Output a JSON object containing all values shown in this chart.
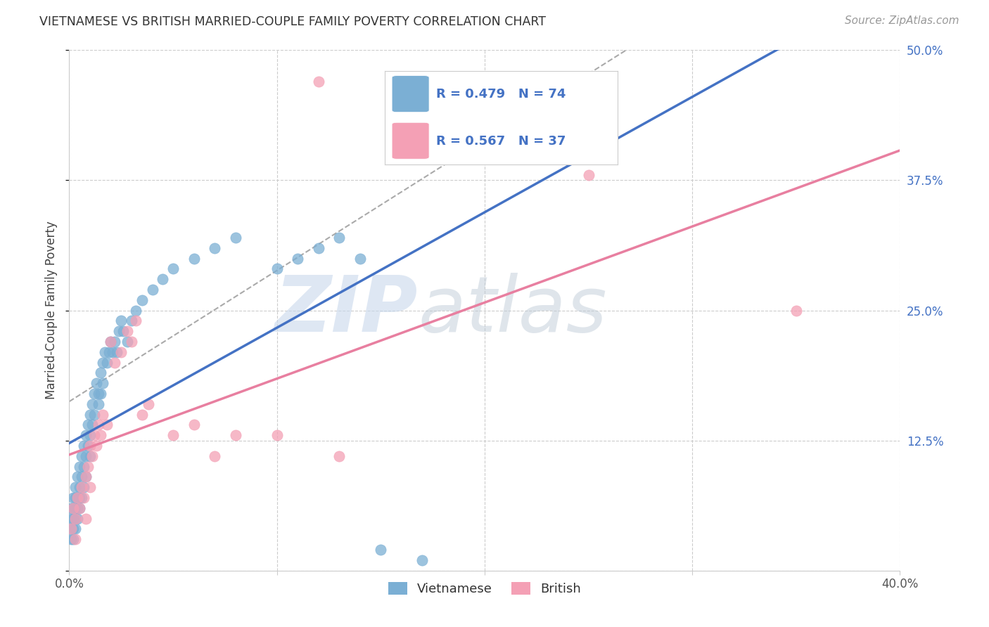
{
  "title": "VIETNAMESE VS BRITISH MARRIED-COUPLE FAMILY POVERTY CORRELATION CHART",
  "source": "Source: ZipAtlas.com",
  "ylabel": "Married-Couple Family Poverty",
  "xlim": [
    0.0,
    0.4
  ],
  "ylim": [
    0.0,
    0.5
  ],
  "xticks": [
    0.0,
    0.1,
    0.2,
    0.3,
    0.4
  ],
  "yticks": [
    0.0,
    0.125,
    0.25,
    0.375,
    0.5
  ],
  "vietnamese_color": "#7bafd4",
  "british_color": "#f4a0b5",
  "vietnamese_R": 0.479,
  "vietnamese_N": 74,
  "british_R": 0.567,
  "british_N": 37,
  "background_color": "#ffffff",
  "grid_color": "#cccccc",
  "tick_color": "#4472c4",
  "title_color": "#333333",
  "source_color": "#999999",
  "viet_line_color": "#4472c4",
  "brit_line_color": "#e87fa0",
  "dash_line_color": "#aaaaaa",
  "watermark_zip_color": "#c8d8ec",
  "watermark_atlas_color": "#c0ccd8"
}
